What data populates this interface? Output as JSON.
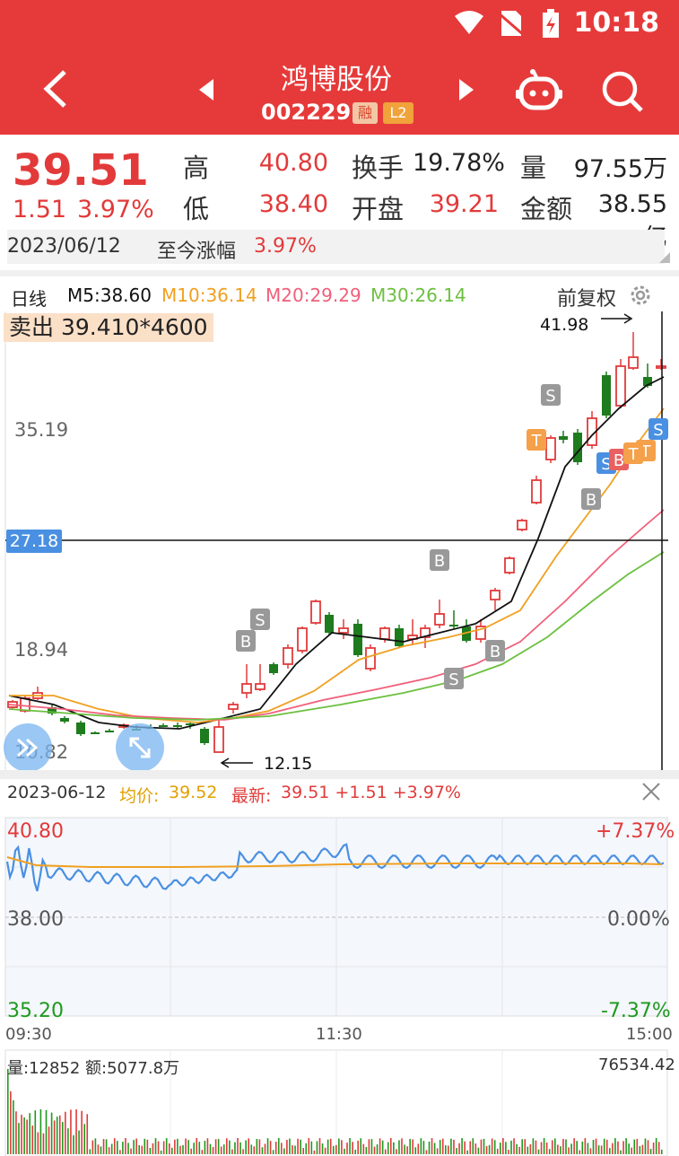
{
  "status": {
    "time": "10:18",
    "wifi_icon": "wifi-icon",
    "nosim_icon": "no-sim-icon",
    "battery_icon": "battery-charging-icon"
  },
  "header": {
    "title": "鸿博股份",
    "code": "002229",
    "badge_rong": "融",
    "badge_l2": "L2",
    "icons": [
      "back-icon",
      "prev-stock-icon",
      "next-stock-icon",
      "robot-icon",
      "search-icon"
    ]
  },
  "quote": {
    "price": "39.51",
    "change": "1.51",
    "change_pct": "3.97%",
    "high_label": "高",
    "high": "40.80",
    "low_label": "低",
    "low": "38.40",
    "turnover_label": "换手",
    "turnover": "19.78%",
    "open_label": "开盘",
    "open": "39.21",
    "volume_label": "量",
    "volume": "97.55万",
    "amount_label": "金额",
    "amount": "38.55亿",
    "date": "2023/06/12",
    "since_label": "至今涨幅",
    "since_value": "3.97%"
  },
  "ma_legend": {
    "period": "日线",
    "m5": "M5:38.60",
    "m10": "M10:36.14",
    "m20": "M20:29.29",
    "m30": "M30:26.14",
    "fuquan": "前复权",
    "colors": {
      "up": "#e23a3a",
      "down": "#1e7b1e",
      "m5": "#111111",
      "m10": "#f0a020",
      "m20": "#f0607a",
      "m30": "#6cc040"
    }
  },
  "kline": {
    "sell_label": "卖出",
    "sell_value": "39.410*4600",
    "max_label": "41.98",
    "min_label": "12.15",
    "y_labels": [
      "35.19",
      "18.94",
      "10.82"
    ],
    "crosshair_label": "27.18",
    "markers": [
      "S",
      "B",
      "S",
      "B",
      "B",
      "S",
      "B",
      "S",
      "T",
      "B",
      "S",
      "B",
      "T",
      "T",
      "S"
    ]
  },
  "intraday": {
    "date": "2023-06-12",
    "avg_label": "均价:",
    "avg_value": "39.52",
    "latest_label": "最新:",
    "latest_value": "39.51 +1.51 +3.97%",
    "y_high": "40.80",
    "y_mid": "38.00",
    "y_low": "35.20",
    "pct_high": "+7.37%",
    "pct_mid": "0.00%",
    "pct_low": "-7.37%",
    "times": [
      "09:30",
      "11:30",
      "15:00"
    ],
    "colors": {
      "price": "#4a90e2",
      "avg": "#f0a020"
    }
  },
  "volume": {
    "vol_label": "量:12852",
    "amount_label": "额:5077.8万",
    "max_value": "76534.42"
  }
}
